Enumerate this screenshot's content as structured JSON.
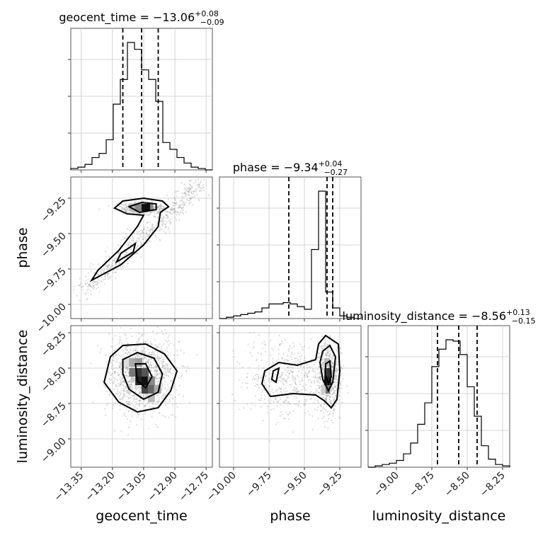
{
  "chart_data": {
    "type": "corner",
    "parameters": [
      {
        "name": "geocent_time",
        "median": "−13.06",
        "plus": "+0.08",
        "minus": "−0.09",
        "title_prefix": "geocent_time = ",
        "ticks": [
          "−13.35",
          "−13.20",
          "−13.05",
          "−12.90",
          "−12.75"
        ],
        "tick_values": [
          -13.35,
          -13.2,
          -13.05,
          -12.9,
          -12.75
        ],
        "range": [
          -13.4,
          -12.72
        ],
        "quantiles": [
          -13.15,
          -13.06,
          -12.98
        ],
        "hist_values": [
          1,
          2,
          4,
          9,
          12,
          22,
          48,
          66,
          93,
          88,
          73,
          66,
          50,
          20,
          15,
          9,
          5,
          2,
          1,
          0
        ]
      },
      {
        "name": "phase",
        "median": "−9.34",
        "plus": "+0.04",
        "minus": "−0.27",
        "title_prefix": "phase = ",
        "ticks": [
          "−10.00",
          "−9.75",
          "−9.50",
          "−9.25"
        ],
        "tick_values": [
          -10.0,
          -9.75,
          -9.5,
          -9.25
        ],
        "range": [
          -10.1,
          -9.1
        ],
        "quantiles": [
          -9.61,
          -9.34,
          -9.3
        ],
        "hist_values": [
          0,
          1,
          2,
          3,
          4,
          5,
          8,
          11,
          11,
          12,
          11,
          9,
          7,
          52,
          96,
          20,
          8,
          2,
          1,
          0
        ]
      },
      {
        "name": "luminosity_distance",
        "median": "−8.56",
        "plus": "+0.13",
        "minus": "−0.15",
        "title_prefix": "luminosity_distance = ",
        "ticks": [
          "−9.00",
          "−8.75",
          "−8.50",
          "−8.25"
        ],
        "tick_values": [
          -9.0,
          -8.75,
          -8.5,
          -8.25
        ],
        "range": [
          -9.2,
          -8.2
        ],
        "quantiles": [
          -8.71,
          -8.56,
          -8.43
        ],
        "hist_values": [
          0,
          1,
          2,
          3,
          5,
          10,
          18,
          32,
          48,
          75,
          88,
          95,
          94,
          84,
          60,
          38,
          16,
          6,
          2,
          1
        ]
      }
    ],
    "has_contours": true,
    "has_scatter": true,
    "grid": true
  }
}
